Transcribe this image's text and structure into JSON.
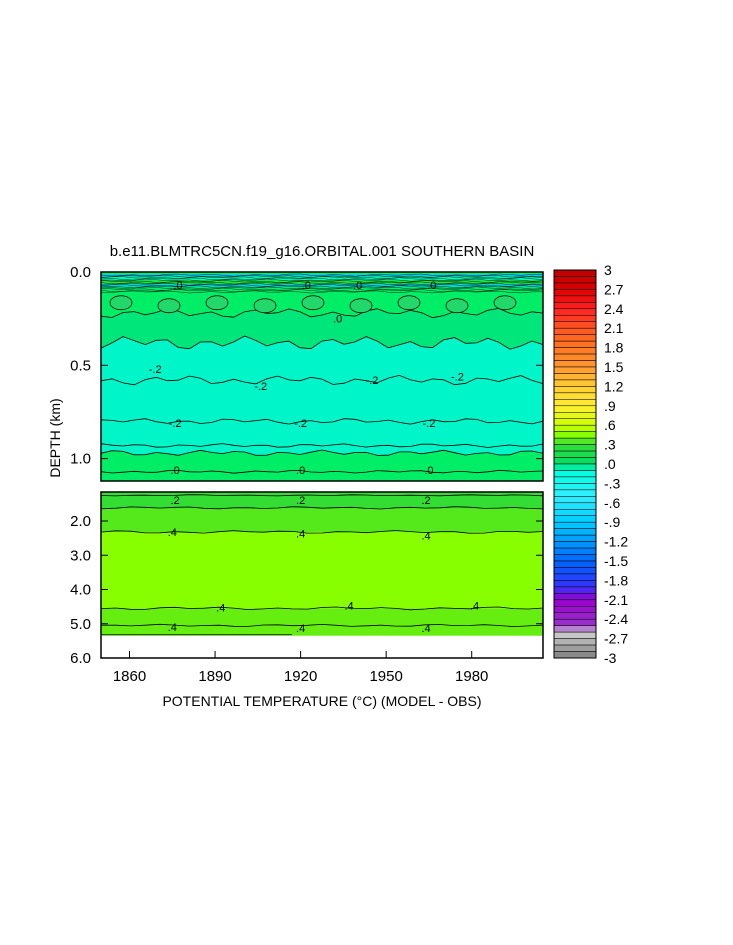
{
  "chart_data": {
    "type": "heatmap",
    "title": "b.e11.BLMTRC5CN.f19_g16.ORBITAL.001 SOUTHERN BASIN",
    "xlabel": "POTENTIAL TEMPERATURE (°C) (MODEL - OBS)",
    "ylabel": "DEPTH (km)",
    "x_ticks": [
      "1860",
      "1890",
      "1920",
      "1950",
      "1980"
    ],
    "xlim": [
      1850,
      2005
    ],
    "upper_panel": {
      "ylim": [
        0.0,
        1.12
      ],
      "y_ticks": [
        "0.0",
        "0.5",
        "1.0"
      ],
      "contour_labels": [
        {
          "text": ".0",
          "x": 1877,
          "depth": 0.07
        },
        {
          "text": ".0",
          "x": 1922,
          "depth": 0.07
        },
        {
          "text": ".0",
          "x": 1940,
          "depth": 0.07
        },
        {
          "text": ".0",
          "x": 1966,
          "depth": 0.07
        },
        {
          "text": ".0",
          "x": 1933,
          "depth": 0.25
        },
        {
          "text": "-.2",
          "x": 1869,
          "depth": 0.52
        },
        {
          "text": "-.2",
          "x": 1906,
          "depth": 0.61
        },
        {
          "text": "-.2",
          "x": 1945,
          "depth": 0.58
        },
        {
          "text": "-.2",
          "x": 1975,
          "depth": 0.56
        },
        {
          "text": "-.2",
          "x": 1876,
          "depth": 0.81
        },
        {
          "text": "-.2",
          "x": 1920,
          "depth": 0.81
        },
        {
          "text": "-.2",
          "x": 1965,
          "depth": 0.81
        },
        {
          "text": ".0",
          "x": 1876,
          "depth": 1.06
        },
        {
          "text": ".0",
          "x": 1920,
          "depth": 1.06
        },
        {
          "text": ".0",
          "x": 1965,
          "depth": 1.06
        }
      ]
    },
    "lower_panel": {
      "ylim": [
        1.12,
        6.0
      ],
      "y_ticks": [
        "2.0",
        "3.0",
        "4.0",
        "5.0",
        "6.0"
      ],
      "contour_labels": [
        {
          "text": ".2",
          "x": 1876,
          "depth": 1.37
        },
        {
          "text": ".2",
          "x": 1920,
          "depth": 1.37
        },
        {
          "text": ".2",
          "x": 1964,
          "depth": 1.37
        },
        {
          "text": ".4",
          "x": 1875,
          "depth": 2.32
        },
        {
          "text": ".4",
          "x": 1920,
          "depth": 2.37
        },
        {
          "text": ".4",
          "x": 1964,
          "depth": 2.42
        },
        {
          "text": ".4",
          "x": 1892,
          "depth": 4.52
        },
        {
          "text": ".4",
          "x": 1937,
          "depth": 4.47
        },
        {
          "text": ".4",
          "x": 1981,
          "depth": 4.47
        },
        {
          "text": ".4",
          "x": 1875,
          "depth": 5.09
        },
        {
          "text": ".4",
          "x": 1920,
          "depth": 5.12
        },
        {
          "text": ".4",
          "x": 1964,
          "depth": 5.12
        }
      ]
    },
    "colorbar": {
      "min": -3,
      "max": 3,
      "step": 0.1,
      "labels": [
        "3",
        "2.7",
        "2.4",
        "2.1",
        "1.8",
        "1.5",
        "1.2",
        ".9",
        ".6",
        ".3",
        ".0",
        "-.3",
        "-.6",
        "-.9",
        "-1.2",
        "-1.5",
        "-1.8",
        "-2.1",
        "-2.4",
        "-2.7",
        "-3"
      ]
    },
    "fill_colors": {
      "near_zero_negative": "#00ffcc",
      "near_zero_positive": "#00ee66",
      "positive_02": "#33dd33",
      "positive_04": "#88ff00",
      "positive_06": "#bbff00"
    },
    "legend": "right",
    "grid": false
  }
}
